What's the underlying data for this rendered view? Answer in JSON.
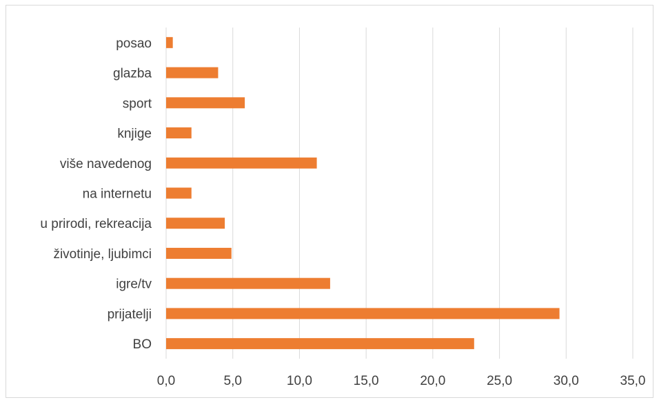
{
  "chart_data": {
    "type": "bar",
    "orientation": "horizontal",
    "categories": [
      "BO",
      "prijatelji",
      "igre/tv",
      "životinje, ljubimci",
      "u prirodi, rekreacija",
      "na internetu",
      "više navedenog",
      "knjige",
      "sport",
      "glazba",
      "posao"
    ],
    "values": [
      23.1,
      29.5,
      12.3,
      4.9,
      4.4,
      1.9,
      11.3,
      1.9,
      5.9,
      3.9,
      0.5
    ],
    "xlim": [
      0,
      35
    ],
    "xticks": [
      "0,0",
      "5,0",
      "10,0",
      "15,0",
      "20,0",
      "25,0",
      "30,0",
      "35,0"
    ],
    "grid": "vertical",
    "bar_color": "#ed7d31",
    "grid_color": "#d9d9d9",
    "title": "",
    "xlabel": "",
    "ylabel": ""
  }
}
